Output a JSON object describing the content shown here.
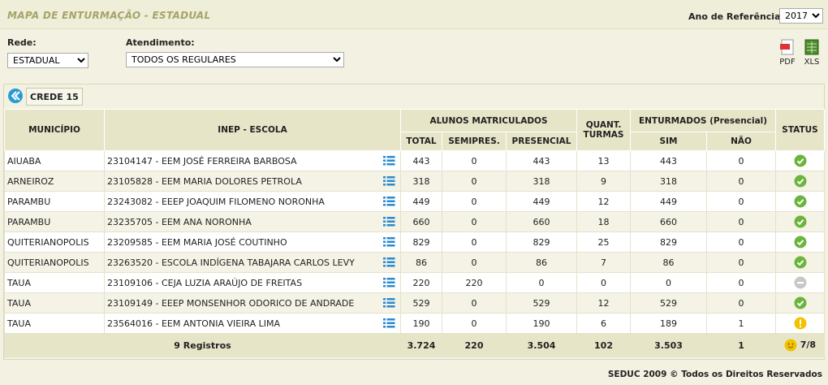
{
  "header": {
    "title": "MAPA DE ENTURMAÇÃO - ESTADUAL",
    "year_label": "Ano de Referência:",
    "year": "2017"
  },
  "filters": {
    "rede_label": "Rede:",
    "rede": "ESTADUAL",
    "atendimento_label": "Atendimento:",
    "atendimento": "TODOS OS REGULARES"
  },
  "exports": [
    "PDF",
    "XLS"
  ],
  "crede": "CREDE 15",
  "table": {
    "columns": {
      "municipio": "MUNICÍPIO",
      "escola": "INEP - ESCOLA",
      "alunos": "ALUNOS MATRICULADOS",
      "total": "TOTAL",
      "semipres": "SEMIPRES.",
      "presencial": "PRESENCIAL",
      "turmas": "QUANT. TURMAS",
      "enturmados": "ENTURMADOS (Presencial)",
      "sim": "SIM",
      "nao": "NÃO",
      "status": "STATUS"
    },
    "rows": [
      [
        "AIUABA",
        "23104147 - EEM JOSÉ FERREIRA BARBOSA",
        443,
        0,
        443,
        13,
        443,
        0
      ],
      [
        "ARNEIROZ",
        "23105828 - EEM MARIA DOLORES PETROLA",
        318,
        0,
        318,
        9,
        318,
        0
      ],
      [
        "PARAMBU",
        "23243082 - EEEP JOAQUIM FILOMENO NORONHA",
        449,
        0,
        449,
        12,
        449,
        0
      ],
      [
        "PARAMBU",
        "23235705 - EEM ANA NORONHA",
        660,
        0,
        660,
        18,
        660,
        0
      ],
      [
        "QUITERIANOPOLIS",
        "23209585 - EEM MARIA JOSÉ COUTINHO",
        829,
        0,
        829,
        25,
        829,
        0
      ],
      [
        "QUITERIANOPOLIS",
        "23263520 - ESCOLA INDÍGENA TABAJARA CARLOS LEVY",
        86,
        0,
        86,
        7,
        86,
        0
      ],
      [
        "TAUA",
        "23109106 - CEJA LUZIA ARAÚJO DE FREITAS",
        220,
        220,
        0,
        0,
        0,
        0
      ],
      [
        "TAUA",
        "23109149 - EEEP MONSENHOR ODORICO DE ANDRADE",
        529,
        0,
        529,
        12,
        529,
        0
      ],
      [
        "TAUA",
        "23564016 - EEM ANTONIA VIEIRA LIMA",
        190,
        0,
        190,
        6,
        189,
        1
      ]
    ],
    "footer": {
      "registros": "9 Registros",
      "totals": [
        "3.724",
        "220",
        "3.504",
        "102",
        "3.503",
        "1"
      ],
      "status": "7/8"
    }
  },
  "copyright": "SEDUC 2009 © Todos os Direitos Reservados"
}
